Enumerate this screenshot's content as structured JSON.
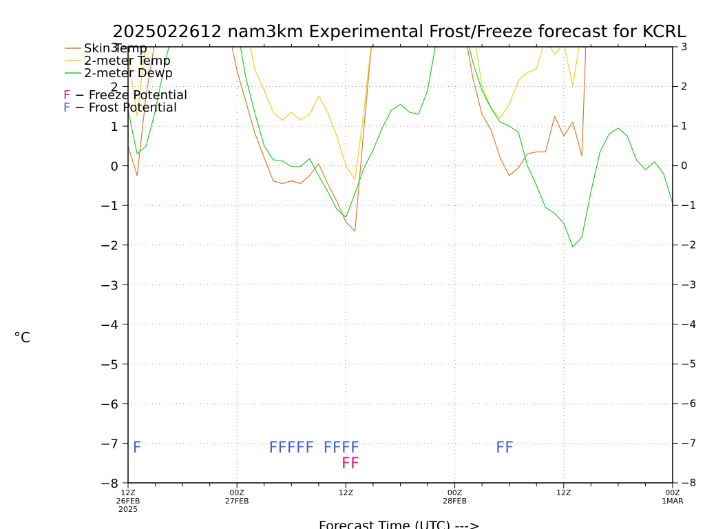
{
  "title": "2025022612 nam3km Experimental Frost/Freeze forecast for KCRL",
  "xlabel": "Forecast Time (UTC) --->",
  "ylabel": "°C",
  "legend": {
    "skin_temp": "Skin Temp",
    "temp_2m": "2-meter Temp",
    "dewp_2m": "2-meter Dewp",
    "freeze": "F − Freeze Potential",
    "frost": "F − Frost Potential"
  },
  "colors": {
    "skin_temp": "#e07a2c",
    "temp_2m": "#f0d020",
    "dewp_2m": "#22cc22",
    "freeze": "#d0208a",
    "frost": "#4060d0",
    "grid": "#999999"
  },
  "x_ticks": [
    {
      "hour": 0,
      "lines": [
        "12Z",
        "26FEB",
        "2025"
      ]
    },
    {
      "hour": 12,
      "lines": [
        "00Z",
        "27FEB"
      ]
    },
    {
      "hour": 24,
      "lines": [
        "12Z"
      ]
    },
    {
      "hour": 36,
      "lines": [
        "00Z",
        "28FEB"
      ]
    },
    {
      "hour": 48,
      "lines": [
        "12Z"
      ]
    },
    {
      "hour": 60,
      "lines": [
        "00Z",
        "1MAR"
      ]
    }
  ],
  "y_ticks_left": [
    "3",
    "2",
    "1",
    "0",
    "−1",
    "−2",
    "−3",
    "−4",
    "−5",
    "−6",
    "−7",
    "−8"
  ],
  "y_ticks_right": [
    "3",
    "2",
    "1",
    "0",
    "−1",
    "−2",
    "−3",
    "−4",
    "−5",
    "−6",
    "−7",
    "−8"
  ],
  "chart_data": {
    "type": "line",
    "title": "2025022612 nam3km Experimental Frost/Freeze forecast for KCRL",
    "xlabel": "Forecast Time (UTC) --->",
    "ylabel": "°C",
    "xlim": [
      0,
      60
    ],
    "ylim": [
      -8,
      3
    ],
    "grid": true,
    "legend_position": "top-left",
    "series": [
      {
        "name": "Skin Temp",
        "key": "skin_temp",
        "x": [
          0,
          1,
          2,
          3,
          4,
          11,
          12,
          13,
          14,
          15,
          16,
          17,
          18,
          19,
          20,
          21,
          22,
          23,
          24,
          25,
          26,
          27,
          27.5,
          37,
          38,
          39,
          40,
          41,
          42,
          43,
          44,
          45,
          46,
          47,
          48,
          49,
          50,
          50.5
        ],
        "y": [
          0.5,
          -0.25,
          1.8,
          3.2,
          3.5,
          3.5,
          2.4,
          1.6,
          0.8,
          0.2,
          -0.38,
          -0.45,
          -0.38,
          -0.45,
          -0.25,
          0.05,
          -0.45,
          -0.9,
          -1.42,
          -1.65,
          1.0,
          3.5,
          3.5,
          3.5,
          2.2,
          1.3,
          0.9,
          0.2,
          -0.25,
          -0.05,
          0.3,
          0.35,
          0.35,
          1.25,
          0.75,
          1.1,
          0.25,
          3.5
        ]
      },
      {
        "name": "2-meter Temp",
        "key": "temp_2m",
        "x": [
          0,
          1,
          2,
          3,
          4,
          13,
          14,
          15,
          16,
          17,
          18,
          19,
          20,
          21,
          22,
          23,
          24,
          25,
          26,
          27,
          27.5,
          38,
          39,
          40,
          41,
          42,
          43,
          44,
          45,
          46,
          47,
          48,
          49,
          50,
          51
        ],
        "y": [
          2.8,
          1.25,
          3.2,
          3.5,
          3.5,
          3.5,
          2.4,
          1.9,
          1.35,
          1.15,
          1.35,
          1.15,
          1.3,
          1.75,
          1.35,
          0.75,
          0.0,
          -0.35,
          1.4,
          3.5,
          3.5,
          3.5,
          2.0,
          1.45,
          1.2,
          1.55,
          2.15,
          2.35,
          2.45,
          3.2,
          2.8,
          3.1,
          2.0,
          3.5,
          3.5
        ]
      },
      {
        "name": "2-meter Dewp",
        "key": "dewp_2m",
        "x": [
          0,
          1,
          2,
          3,
          4,
          5,
          11,
          12,
          13,
          14,
          15,
          16,
          17,
          18,
          19,
          20,
          21,
          22,
          23,
          24,
          25,
          26,
          27,
          28,
          29,
          30,
          31,
          32,
          33,
          34,
          35,
          36,
          37,
          38,
          39,
          40,
          41,
          42,
          43,
          44,
          45,
          46,
          47,
          48,
          49,
          50,
          51,
          52,
          53,
          54,
          55,
          56,
          57,
          58,
          59,
          60
        ],
        "y": [
          1.4,
          0.3,
          0.5,
          1.4,
          2.5,
          3.5,
          3.5,
          3.5,
          2.2,
          1.3,
          0.5,
          0.15,
          0.12,
          -0.02,
          -0.02,
          0.18,
          -0.25,
          -0.65,
          -1.1,
          -1.3,
          -0.7,
          -0.05,
          0.4,
          0.95,
          1.4,
          1.55,
          1.35,
          1.3,
          1.9,
          3.2,
          3.5,
          3.5,
          3.5,
          2.6,
          1.9,
          1.45,
          1.1,
          1.0,
          0.85,
          0.0,
          -0.5,
          -1.05,
          -1.2,
          -1.45,
          -2.05,
          -1.8,
          -0.65,
          0.35,
          0.8,
          0.95,
          0.75,
          0.15,
          -0.1,
          0.1,
          -0.2,
          -0.95
        ]
      }
    ],
    "frost_potential": {
      "label": "F",
      "y": -7.1,
      "hours": [
        1,
        16,
        17,
        18,
        19,
        20,
        22,
        23,
        24,
        25,
        41,
        42
      ]
    },
    "freeze_potential": {
      "label": "F",
      "y": -7.5,
      "hours": [
        24,
        25
      ]
    }
  }
}
